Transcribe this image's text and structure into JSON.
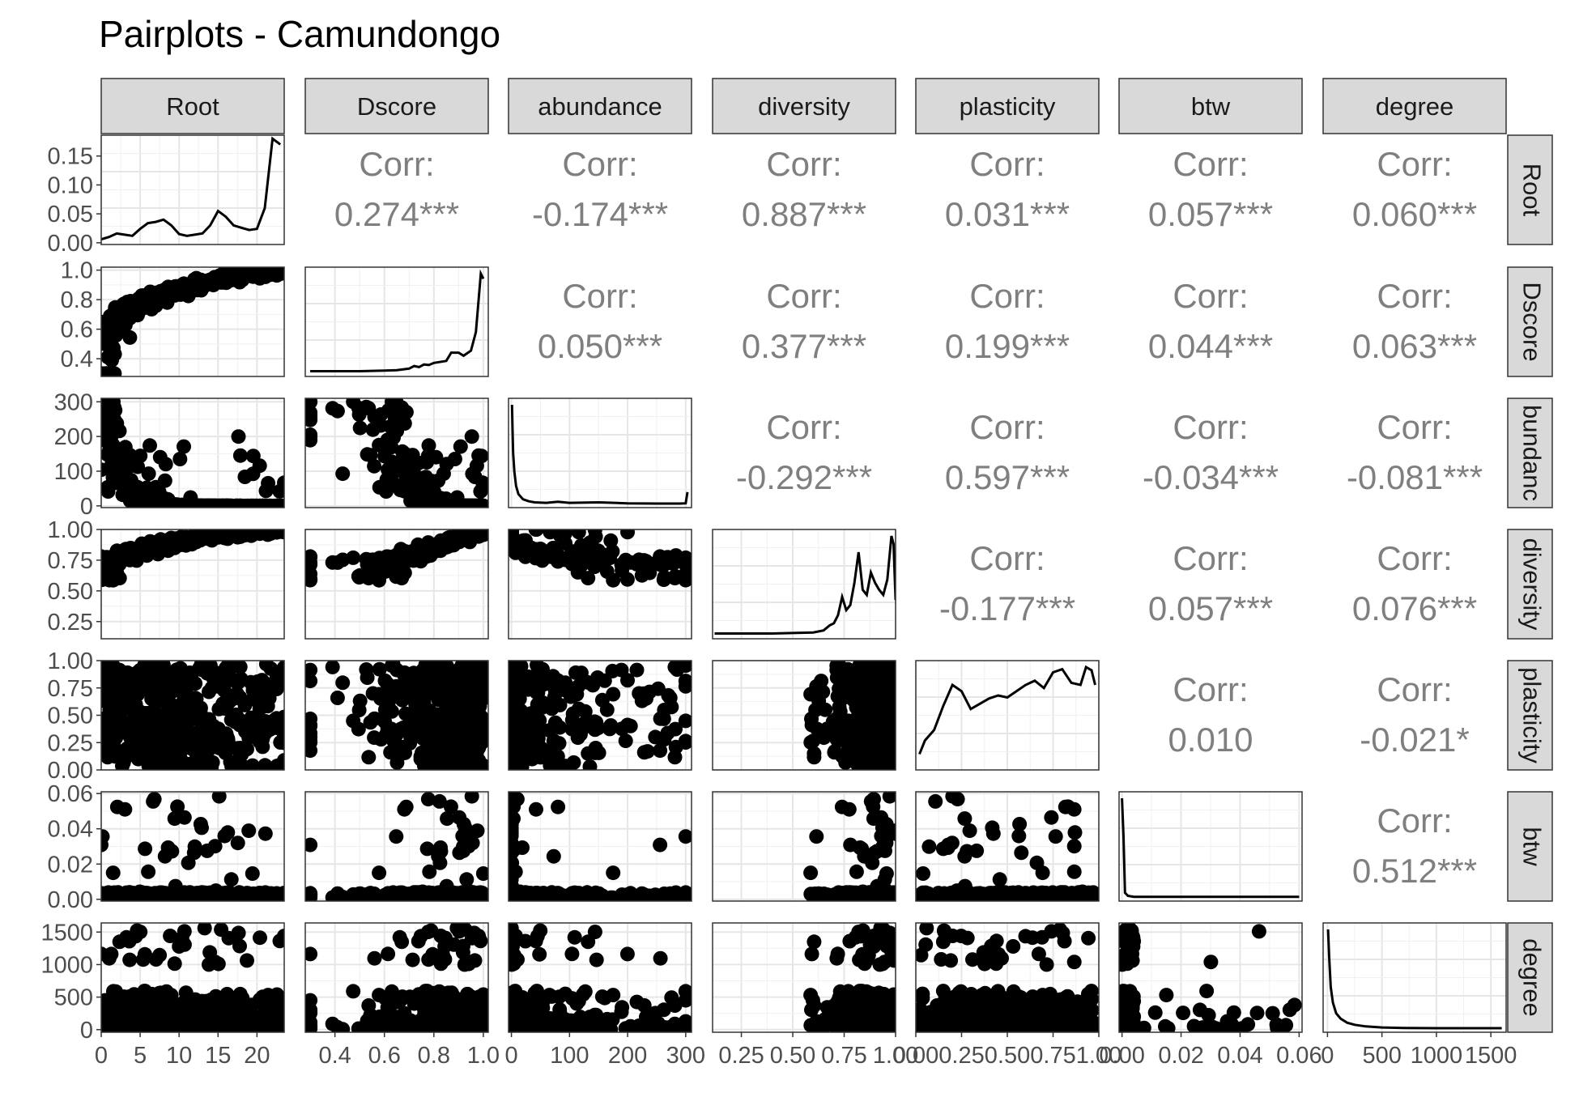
{
  "chart_data": {
    "type": "scatter",
    "title": "Pairplots - Camundongo",
    "variables": [
      "Root",
      "Dscore",
      "abundance",
      "diversity",
      "plasticity",
      "btw",
      "degree"
    ],
    "row_strip_labels": [
      "Root",
      "Dscore",
      "bundanc",
      "diversity",
      "plasticity",
      "btw",
      "degree"
    ],
    "corr_label": "Corr:",
    "correlations": [
      {
        "row": 0,
        "col": 1,
        "value": "0.274***"
      },
      {
        "row": 0,
        "col": 2,
        "value": "-0.174***"
      },
      {
        "row": 0,
        "col": 3,
        "value": "0.887***"
      },
      {
        "row": 0,
        "col": 4,
        "value": "0.031***"
      },
      {
        "row": 0,
        "col": 5,
        "value": "0.057***"
      },
      {
        "row": 0,
        "col": 6,
        "value": "0.060***"
      },
      {
        "row": 1,
        "col": 2,
        "value": "0.050***"
      },
      {
        "row": 1,
        "col": 3,
        "value": "0.377***"
      },
      {
        "row": 1,
        "col": 4,
        "value": "0.199***"
      },
      {
        "row": 1,
        "col": 5,
        "value": "0.044***"
      },
      {
        "row": 1,
        "col": 6,
        "value": "0.063***"
      },
      {
        "row": 2,
        "col": 3,
        "value": "-0.292***"
      },
      {
        "row": 2,
        "col": 4,
        "value": "0.597***"
      },
      {
        "row": 2,
        "col": 5,
        "value": "-0.034***"
      },
      {
        "row": 2,
        "col": 6,
        "value": "-0.081***"
      },
      {
        "row": 3,
        "col": 4,
        "value": "-0.177***"
      },
      {
        "row": 3,
        "col": 5,
        "value": "0.057***"
      },
      {
        "row": 3,
        "col": 6,
        "value": "0.076***"
      },
      {
        "row": 4,
        "col": 5,
        "value": "0.010"
      },
      {
        "row": 4,
        "col": 6,
        "value": "-0.021*"
      },
      {
        "row": 5,
        "col": 6,
        "value": "0.512***"
      }
    ],
    "x_axes": [
      {
        "var": "Root",
        "range": [
          0,
          23.5
        ],
        "ticks": [
          0,
          5,
          10,
          15,
          20
        ],
        "tick_labels": [
          "0",
          "5",
          "10",
          "15",
          "20"
        ]
      },
      {
        "var": "Dscore",
        "range": [
          0.28,
          1.02
        ],
        "ticks": [
          0.4,
          0.6,
          0.8,
          1.0
        ],
        "tick_labels": [
          "0.4",
          "0.6",
          "0.8",
          "1.0"
        ]
      },
      {
        "var": "abundance",
        "range": [
          -5,
          310
        ],
        "ticks": [
          0,
          100,
          200,
          300
        ],
        "tick_labels": [
          "0",
          "100",
          "200",
          "300"
        ]
      },
      {
        "var": "diversity",
        "range": [
          0.11,
          1.0
        ],
        "ticks": [
          0.25,
          0.5,
          0.75,
          1.0
        ],
        "tick_labels": [
          "0.25",
          "0.50",
          "0.75",
          "1.00"
        ]
      },
      {
        "var": "plasticity",
        "range": [
          0,
          1.0
        ],
        "ticks": [
          0,
          0.25,
          0.5,
          0.75,
          1.0
        ],
        "tick_labels": [
          "0.00",
          "0.25",
          "0.50",
          "0.75",
          "1.00"
        ]
      },
      {
        "var": "btw",
        "range": [
          -0.001,
          0.061
        ],
        "ticks": [
          0,
          0.02,
          0.04,
          0.06
        ],
        "tick_labels": [
          "0.00",
          "0.02",
          "0.04",
          "0.06"
        ]
      },
      {
        "var": "degree",
        "range": [
          -40,
          1640
        ],
        "ticks": [
          0,
          500,
          1000,
          1500
        ],
        "tick_labels": [
          "0",
          "500",
          "1000",
          "1500"
        ]
      }
    ],
    "y_axes": [
      {
        "var": "Root",
        "range": [
          -0.003,
          0.186
        ],
        "ticks": [
          0,
          0.05,
          0.1,
          0.15
        ],
        "tick_labels": [
          "0.00",
          "0.05",
          "0.10",
          "0.15"
        ]
      },
      {
        "var": "Dscore",
        "range": [
          0.28,
          1.02
        ],
        "ticks": [
          0.4,
          0.6,
          0.8,
          1.0
        ],
        "tick_labels": [
          "0.4",
          "0.6",
          "0.8",
          "1.0"
        ]
      },
      {
        "var": "abundance",
        "range": [
          -5,
          310
        ],
        "ticks": [
          0,
          100,
          200,
          300
        ],
        "tick_labels": [
          "0",
          "100",
          "200",
          "300"
        ]
      },
      {
        "var": "diversity",
        "range": [
          0.11,
          1.0
        ],
        "ticks": [
          0.25,
          0.5,
          0.75,
          1.0
        ],
        "tick_labels": [
          "0.25",
          "0.50",
          "0.75",
          "1.00"
        ]
      },
      {
        "var": "plasticity",
        "range": [
          0,
          1.0
        ],
        "ticks": [
          0,
          0.25,
          0.5,
          0.75,
          1.0
        ],
        "tick_labels": [
          "0.00",
          "0.25",
          "0.50",
          "0.75",
          "1.00"
        ]
      },
      {
        "var": "btw",
        "range": [
          -0.001,
          0.061
        ],
        "ticks": [
          0,
          0.02,
          0.04,
          0.06
        ],
        "tick_labels": [
          "0.00",
          "0.02",
          "0.04",
          "0.06"
        ]
      },
      {
        "var": "degree",
        "range": [
          -40,
          1640
        ],
        "ticks": [
          0,
          500,
          1000,
          1500
        ],
        "tick_labels": [
          "0",
          "500",
          "1000",
          "1500"
        ]
      }
    ],
    "density_curves": [
      {
        "var": "Root",
        "x": [
          0,
          1,
          2,
          3,
          4,
          5,
          6,
          7,
          8,
          9,
          10,
          11,
          12,
          13,
          14,
          15,
          16,
          17,
          18,
          19,
          20,
          21,
          22,
          23
        ],
        "y": [
          0.006,
          0.01,
          0.016,
          0.014,
          0.012,
          0.024,
          0.034,
          0.036,
          0.04,
          0.03,
          0.015,
          0.012,
          0.014,
          0.016,
          0.03,
          0.055,
          0.045,
          0.03,
          0.026,
          0.022,
          0.024,
          0.06,
          0.18,
          0.17
        ]
      },
      {
        "var": "Dscore",
        "x": [
          0.3,
          0.4,
          0.5,
          0.6,
          0.65,
          0.7,
          0.72,
          0.74,
          0.76,
          0.78,
          0.8,
          0.85,
          0.87,
          0.9,
          0.92,
          0.95,
          0.97,
          0.99,
          1.0
        ],
        "y": [
          0.02,
          0.02,
          0.02,
          0.025,
          0.03,
          0.045,
          0.07,
          0.06,
          0.085,
          0.08,
          0.1,
          0.12,
          0.2,
          0.2,
          0.17,
          0.22,
          0.4,
          0.97,
          0.92
        ]
      },
      {
        "var": "abundance",
        "x": [
          1,
          2,
          3,
          5,
          8,
          12,
          20,
          30,
          40,
          60,
          80,
          100,
          150,
          200,
          250,
          290,
          300,
          303
        ],
        "y": [
          0.97,
          0.72,
          0.5,
          0.32,
          0.18,
          0.1,
          0.05,
          0.03,
          0.02,
          0.015,
          0.025,
          0.015,
          0.02,
          0.01,
          0.008,
          0.008,
          0.01,
          0.12
        ]
      },
      {
        "var": "diversity",
        "x": [
          0.12,
          0.2,
          0.3,
          0.4,
          0.5,
          0.6,
          0.65,
          0.68,
          0.7,
          0.72,
          0.74,
          0.76,
          0.78,
          0.8,
          0.82,
          0.84,
          0.86,
          0.88,
          0.9,
          0.92,
          0.94,
          0.96,
          0.98,
          0.99,
          1.0
        ],
        "y": [
          0.02,
          0.02,
          0.02,
          0.02,
          0.025,
          0.03,
          0.05,
          0.1,
          0.12,
          0.2,
          0.38,
          0.25,
          0.3,
          0.52,
          0.82,
          0.45,
          0.4,
          0.62,
          0.52,
          0.45,
          0.4,
          0.55,
          0.98,
          0.9,
          0.35
        ]
      },
      {
        "var": "plasticity",
        "x": [
          0.02,
          0.05,
          0.1,
          0.15,
          0.2,
          0.25,
          0.3,
          0.35,
          0.4,
          0.45,
          0.5,
          0.55,
          0.6,
          0.65,
          0.7,
          0.75,
          0.8,
          0.85,
          0.9,
          0.93,
          0.96,
          0.98
        ],
        "y": [
          0.12,
          0.25,
          0.35,
          0.58,
          0.78,
          0.72,
          0.55,
          0.6,
          0.65,
          0.68,
          0.66,
          0.72,
          0.78,
          0.82,
          0.75,
          0.9,
          0.93,
          0.8,
          0.78,
          0.95,
          0.92,
          0.78
        ]
      },
      {
        "var": "btw",
        "x": [
          0.0,
          0.0005,
          0.001,
          0.002,
          0.004,
          0.01,
          0.02,
          0.04,
          0.06
        ],
        "y": [
          0.98,
          0.6,
          0.05,
          0.02,
          0.01,
          0.01,
          0.01,
          0.01,
          0.01
        ]
      },
      {
        "var": "degree",
        "x": [
          5,
          15,
          30,
          50,
          80,
          120,
          180,
          250,
          350,
          500,
          700,
          1000,
          1300,
          1600
        ],
        "y": [
          0.95,
          0.7,
          0.4,
          0.25,
          0.15,
          0.1,
          0.06,
          0.04,
          0.025,
          0.015,
          0.01,
          0.008,
          0.008,
          0.008
        ]
      }
    ],
    "grid": true,
    "legend": "none"
  }
}
